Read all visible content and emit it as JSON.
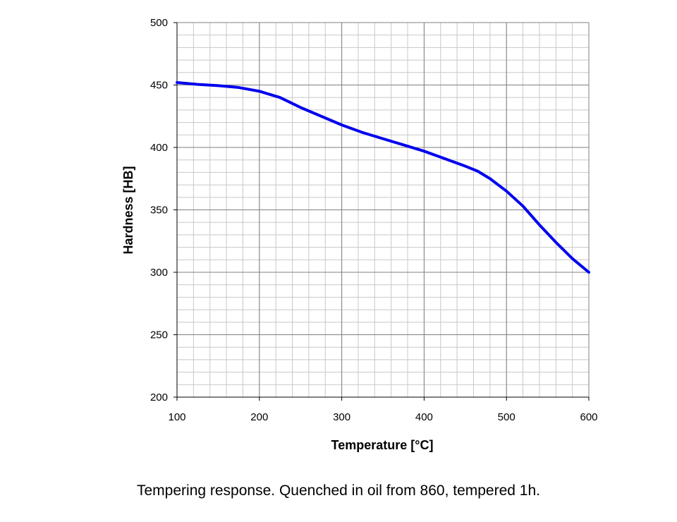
{
  "caption": "Tempering response. Quenched in oil from 860, tempered 1h.",
  "chart_data": {
    "type": "line",
    "title": "",
    "xlabel": "Temperature [°C]",
    "ylabel": "Hardness [HB]",
    "xlim": [
      100,
      600
    ],
    "ylim": [
      200,
      500
    ],
    "xticks": [
      100,
      200,
      300,
      400,
      500,
      600
    ],
    "yticks": [
      200,
      250,
      300,
      350,
      400,
      450,
      500
    ],
    "grid": true,
    "legend": "none",
    "series_color": "#0000ee",
    "series": [
      {
        "x": [
          100,
          125,
          150,
          175,
          200,
          225,
          250,
          275,
          300,
          325,
          350,
          375,
          400,
          425,
          450,
          465,
          480,
          500,
          520,
          540,
          560,
          580,
          600
        ],
        "values": [
          452,
          450.5,
          449.5,
          448,
          445,
          440,
          432,
          425,
          418,
          412,
          407,
          402,
          397,
          391,
          385,
          381,
          375,
          365,
          353,
          338,
          324,
          311,
          300
        ]
      }
    ]
  }
}
